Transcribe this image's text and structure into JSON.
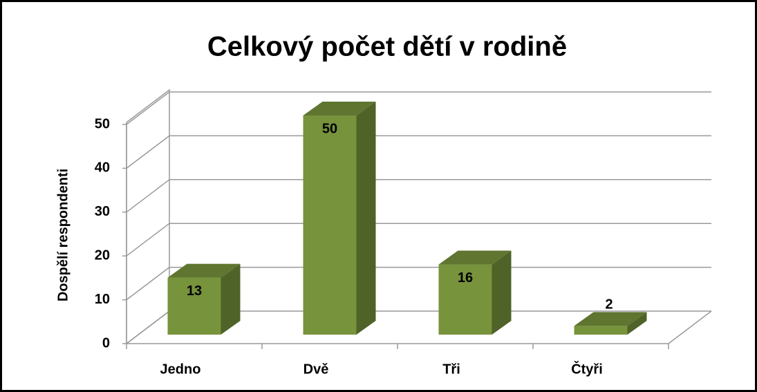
{
  "chart_data": {
    "type": "bar3d",
    "title": "Celkový počet dětí v rodině",
    "y_label": "Dospělí respondenti",
    "categories": [
      "Jedno",
      "Dvě",
      "Tři",
      "Čtyři"
    ],
    "values": [
      13,
      50,
      16,
      2
    ],
    "color": "#77933c",
    "ylim": [
      0,
      50
    ],
    "yticks": [
      0,
      10,
      20,
      30,
      40,
      50
    ],
    "grid": true
  }
}
